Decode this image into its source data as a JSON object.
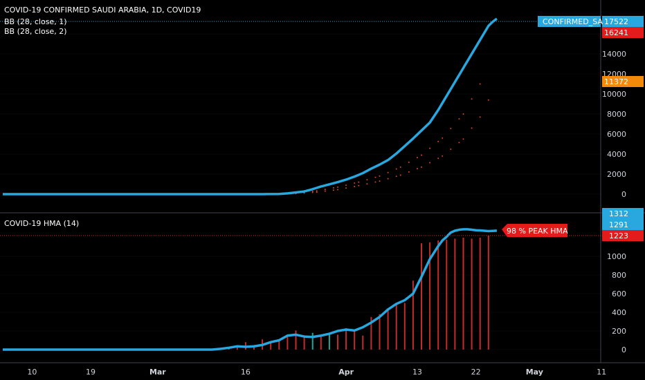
{
  "colors": {
    "background": "#000000",
    "hma_line": "#29a8e0",
    "bb_dots": "#d9482b",
    "volume_red": "#c42b2b",
    "volume_green": "#26a69a",
    "badge_blue": "#29a8e0",
    "badge_red": "#e31b1b",
    "badge_orange": "#f48a0c",
    "grid": "#2a2e39"
  },
  "top_pane": {
    "legend": [
      "COVID-19 CONFIRMED SAUDI ARABIA, 1D, COVID19",
      "BB (28, close, 1)",
      "BB (28, close, 2)"
    ],
    "badges": [
      {
        "label": "CONFIRMED_SA",
        "value": "17522",
        "color": "blue"
      },
      {
        "value": "16241",
        "color": "red"
      },
      {
        "value": "11372",
        "color": "orange"
      }
    ]
  },
  "bottom_pane": {
    "legend": [
      "COVID-19  HMA (14)"
    ],
    "annotation": "98 % PEAK HMA",
    "badges": [
      {
        "value": "1312",
        "color": "blue"
      },
      {
        "value": "1291",
        "color": "blue"
      },
      {
        "value": "1223",
        "color": "red"
      }
    ]
  },
  "chart_data": [
    {
      "type": "line",
      "xlabel": "",
      "ylabel": "",
      "x_ticks": [
        "10",
        "19",
        "Mar",
        "16",
        "Apr",
        "13",
        "22",
        "May",
        "11"
      ],
      "y_ticks": [
        0,
        2000,
        4000,
        6000,
        8000,
        10000,
        12000,
        14000,
        16000
      ],
      "ylim": [
        -400,
        18500
      ],
      "series": [
        {
          "name": "CONFIRMED_SA",
          "x": [
            0,
            60,
            63,
            66,
            68,
            70,
            72,
            74,
            76,
            78,
            80,
            82,
            84,
            86,
            88,
            90,
            92,
            94,
            96,
            98,
            100,
            102,
            104,
            106,
            108,
            110,
            112,
            114,
            116,
            117,
            118
          ],
          "values": [
            0,
            0,
            5,
            20,
            80,
            170,
            270,
            500,
            760,
            980,
            1200,
            1450,
            1750,
            2100,
            2550,
            2950,
            3400,
            4050,
            4800,
            5550,
            6350,
            7150,
            8400,
            9800,
            11200,
            12600,
            14000,
            15400,
            16800,
            17200,
            17522
          ]
        },
        {
          "name": "BB upper",
          "x": [
            65,
            70,
            75,
            80,
            85,
            90,
            95,
            100,
            105,
            110,
            112,
            114,
            116
          ],
          "values": [
            30,
            120,
            330,
            700,
            1200,
            1800,
            2700,
            3900,
            5600,
            8000,
            9500,
            11000,
            13400
          ]
        },
        {
          "name": "BB lower",
          "x": [
            65,
            70,
            75,
            80,
            85,
            90,
            95,
            100,
            105,
            110,
            112,
            114,
            116,
            118
          ],
          "values": [
            10,
            60,
            200,
            450,
            850,
            1300,
            1900,
            2700,
            3800,
            5500,
            6600,
            7700,
            9400,
            11372
          ]
        }
      ]
    },
    {
      "type": "bar",
      "xlabel": "",
      "ylabel": "",
      "y_ticks": [
        0,
        200,
        400,
        600,
        800,
        1000
      ],
      "ylim": [
        -40,
        1330
      ],
      "series": [
        {
          "name": "COVID-19 HMA (14)",
          "x": [
            0,
            50,
            52,
            54,
            56,
            58,
            60,
            62,
            64,
            66,
            68,
            70,
            72,
            74,
            76,
            78,
            80,
            82,
            84,
            86,
            88,
            90,
            92,
            94,
            96,
            98,
            100,
            102,
            104,
            105,
            106,
            107,
            108,
            109,
            110,
            111,
            112,
            113,
            114,
            116,
            118
          ],
          "values": [
            0,
            0,
            8,
            20,
            35,
            30,
            35,
            50,
            80,
            100,
            150,
            160,
            140,
            135,
            150,
            170,
            200,
            215,
            205,
            240,
            290,
            350,
            430,
            490,
            530,
            600,
            780,
            970,
            1110,
            1170,
            1210,
            1255,
            1275,
            1285,
            1290,
            1290,
            1285,
            1280,
            1278,
            1270,
            1275
          ]
        },
        {
          "name": "daily",
          "x": [
            54,
            56,
            58,
            60,
            62,
            64,
            66,
            68,
            70,
            72,
            74,
            76,
            78,
            80,
            82,
            84,
            86,
            88,
            90,
            92,
            94,
            96,
            98,
            100,
            102,
            104,
            106,
            108,
            110,
            112,
            114,
            116
          ],
          "values": [
            20,
            30,
            80,
            30,
            110,
            70,
            90,
            160,
            205,
            130,
            180,
            150,
            160,
            160,
            230,
            210,
            150,
            350,
            380,
            430,
            490,
            500,
            740,
            1140,
            1150,
            1170,
            1180,
            1190,
            1200,
            1190,
            1200,
            1223
          ]
        }
      ]
    }
  ]
}
